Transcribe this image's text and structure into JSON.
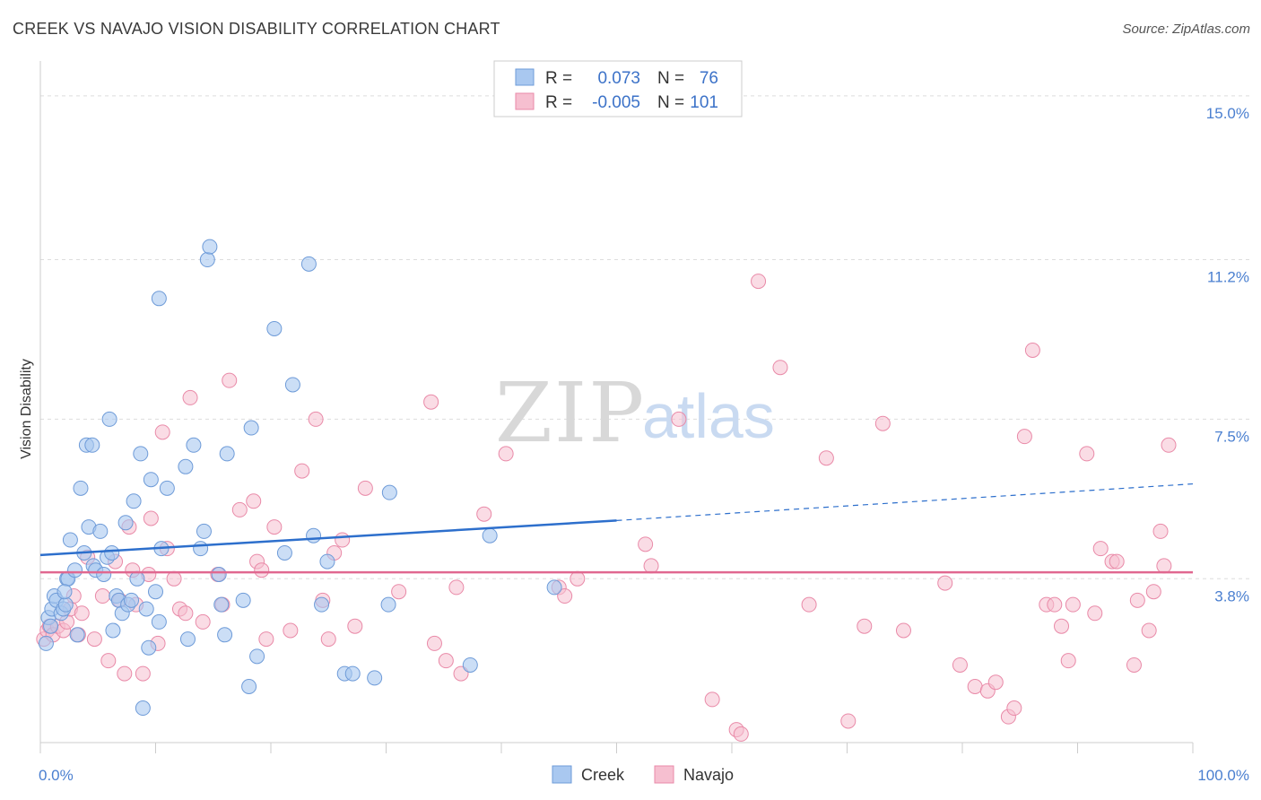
{
  "title": "CREEK VS NAVAJO VISION DISABILITY CORRELATION CHART",
  "source": "Source: ZipAtlas.com",
  "watermark": {
    "zip": "ZIP",
    "atlas": "atlas"
  },
  "colors": {
    "creek_fill": "#a9c8f0",
    "creek_stroke": "#6e9bd8",
    "creek_line": "#2d6fcc",
    "navajo_fill": "#f6bfd0",
    "navajo_stroke": "#e98aa8",
    "navajo_line": "#e06890",
    "tick_text": "#4a7fd0",
    "grid": "#dddddd"
  },
  "legend": {
    "rows": [
      {
        "r_label": "R =",
        "r_value": "0.073",
        "n_label": "N =",
        "n_value": "76"
      },
      {
        "r_label": "R =",
        "r_value": "-0.005",
        "n_label": "N =",
        "n_value": "101"
      }
    ]
  },
  "bottom_legend": [
    "Creek",
    "Navajo"
  ],
  "chart_data": {
    "type": "scatter",
    "title": "CREEK VS NAVAJO VISION DISABILITY CORRELATION CHART",
    "xlabel": "",
    "ylabel": "Vision Disability",
    "xlim": [
      0,
      100
    ],
    "ylim": [
      0,
      15.6
    ],
    "x_tick_labels": [
      "0.0%",
      "100.0%"
    ],
    "y_ticks": [
      3.8,
      7.5,
      11.2,
      15.0
    ],
    "y_tick_labels": [
      "3.8%",
      "7.5%",
      "11.2%",
      "15.0%"
    ],
    "grid": true,
    "legend_position": "top-center",
    "series": [
      {
        "name": "Creek",
        "r": 0.073,
        "n": 76,
        "trend": {
          "x0": 0,
          "y0": 4.35,
          "x1": 50,
          "y1": 5.15,
          "dashed_to_x": 100,
          "dashed_to_y": 6.0
        },
        "points": [
          [
            0.5,
            2.3
          ],
          [
            0.7,
            2.9
          ],
          [
            1.0,
            3.1
          ],
          [
            1.2,
            3.4
          ],
          [
            1.4,
            3.3
          ],
          [
            1.8,
            3.0
          ],
          [
            2.0,
            3.1
          ],
          [
            2.2,
            3.2
          ],
          [
            2.3,
            3.8
          ],
          [
            2.4,
            3.8
          ],
          [
            2.6,
            4.7
          ],
          [
            3.0,
            4.0
          ],
          [
            3.2,
            2.5
          ],
          [
            3.5,
            5.9
          ],
          [
            3.8,
            4.4
          ],
          [
            4.0,
            6.9
          ],
          [
            4.2,
            5.0
          ],
          [
            4.5,
            6.9
          ],
          [
            4.6,
            4.1
          ],
          [
            4.8,
            4.0
          ],
          [
            5.2,
            4.9
          ],
          [
            5.5,
            3.9
          ],
          [
            5.8,
            4.3
          ],
          [
            6.0,
            7.5
          ],
          [
            6.2,
            4.4
          ],
          [
            6.6,
            3.4
          ],
          [
            6.8,
            3.3
          ],
          [
            7.1,
            3.0
          ],
          [
            7.4,
            5.1
          ],
          [
            7.6,
            3.2
          ],
          [
            7.9,
            3.3
          ],
          [
            8.1,
            5.6
          ],
          [
            8.4,
            3.8
          ],
          [
            8.7,
            6.7
          ],
          [
            8.9,
            0.8
          ],
          [
            9.4,
            2.2
          ],
          [
            9.6,
            6.1
          ],
          [
            10.0,
            3.5
          ],
          [
            10.3,
            2.8
          ],
          [
            10.5,
            4.5
          ],
          [
            10.3,
            10.3
          ],
          [
            11.0,
            5.9
          ],
          [
            12.6,
            6.4
          ],
          [
            12.8,
            2.4
          ],
          [
            13.3,
            6.9
          ],
          [
            13.9,
            4.5
          ],
          [
            14.2,
            4.9
          ],
          [
            14.5,
            11.2
          ],
          [
            14.7,
            11.5
          ],
          [
            15.5,
            3.9
          ],
          [
            15.7,
            3.2
          ],
          [
            16.0,
            2.5
          ],
          [
            16.2,
            6.7
          ],
          [
            17.6,
            3.3
          ],
          [
            18.1,
            1.3
          ],
          [
            18.3,
            7.3
          ],
          [
            18.8,
            2.0
          ],
          [
            20.3,
            9.6
          ],
          [
            21.2,
            4.4
          ],
          [
            21.9,
            8.3
          ],
          [
            23.3,
            11.1
          ],
          [
            23.7,
            4.8
          ],
          [
            24.4,
            3.2
          ],
          [
            24.9,
            4.2
          ],
          [
            26.4,
            1.6
          ],
          [
            27.1,
            1.6
          ],
          [
            29.0,
            1.5
          ],
          [
            30.2,
            3.2
          ],
          [
            30.3,
            5.8
          ],
          [
            37.3,
            1.8
          ],
          [
            39.0,
            4.8
          ],
          [
            44.6,
            3.6
          ],
          [
            0.9,
            2.7
          ],
          [
            2.1,
            3.5
          ],
          [
            6.3,
            2.6
          ],
          [
            9.2,
            3.1
          ]
        ]
      },
      {
        "name": "Navajo",
        "r": -0.005,
        "n": 101,
        "trend": {
          "x0": 0,
          "y0": 3.95,
          "x1": 100,
          "y1": 3.95
        },
        "points": [
          [
            0.3,
            2.4
          ],
          [
            0.6,
            2.6
          ],
          [
            0.8,
            2.7
          ],
          [
            1.1,
            2.5
          ],
          [
            1.5,
            2.7
          ],
          [
            2.0,
            2.6
          ],
          [
            2.3,
            2.8
          ],
          [
            2.6,
            3.1
          ],
          [
            2.9,
            3.4
          ],
          [
            3.3,
            2.5
          ],
          [
            3.6,
            3.0
          ],
          [
            4.1,
            4.3
          ],
          [
            4.7,
            2.4
          ],
          [
            5.4,
            3.4
          ],
          [
            5.9,
            1.9
          ],
          [
            6.5,
            4.2
          ],
          [
            6.9,
            3.3
          ],
          [
            7.3,
            1.6
          ],
          [
            7.7,
            5.0
          ],
          [
            8.0,
            4.0
          ],
          [
            8.3,
            3.2
          ],
          [
            8.9,
            1.6
          ],
          [
            9.4,
            3.9
          ],
          [
            9.6,
            5.2
          ],
          [
            10.2,
            2.3
          ],
          [
            10.6,
            7.2
          ],
          [
            11.0,
            4.5
          ],
          [
            11.6,
            3.8
          ],
          [
            12.1,
            3.1
          ],
          [
            12.6,
            3.0
          ],
          [
            13.0,
            8.0
          ],
          [
            14.1,
            2.8
          ],
          [
            15.4,
            3.9
          ],
          [
            15.8,
            3.2
          ],
          [
            16.4,
            8.4
          ],
          [
            17.3,
            5.4
          ],
          [
            18.5,
            5.6
          ],
          [
            18.8,
            4.2
          ],
          [
            19.2,
            4.0
          ],
          [
            19.6,
            2.4
          ],
          [
            20.3,
            5.0
          ],
          [
            21.7,
            2.6
          ],
          [
            22.7,
            6.3
          ],
          [
            23.9,
            7.5
          ],
          [
            24.5,
            3.3
          ],
          [
            25.0,
            2.4
          ],
          [
            25.5,
            4.4
          ],
          [
            26.2,
            4.7
          ],
          [
            27.3,
            2.7
          ],
          [
            28.2,
            5.9
          ],
          [
            31.1,
            3.5
          ],
          [
            33.9,
            7.9
          ],
          [
            34.2,
            2.3
          ],
          [
            35.2,
            1.9
          ],
          [
            36.1,
            3.6
          ],
          [
            36.5,
            1.6
          ],
          [
            38.5,
            5.3
          ],
          [
            40.4,
            6.7
          ],
          [
            45.0,
            3.6
          ],
          [
            45.5,
            3.4
          ],
          [
            46.6,
            3.8
          ],
          [
            52.5,
            4.6
          ],
          [
            53.0,
            4.1
          ],
          [
            55.4,
            7.5
          ],
          [
            58.3,
            1.0
          ],
          [
            60.4,
            0.3
          ],
          [
            60.8,
            0.2
          ],
          [
            62.3,
            10.7
          ],
          [
            64.2,
            8.7
          ],
          [
            66.7,
            3.2
          ],
          [
            68.2,
            6.6
          ],
          [
            70.1,
            0.5
          ],
          [
            71.5,
            2.7
          ],
          [
            73.1,
            7.4
          ],
          [
            74.9,
            2.6
          ],
          [
            78.5,
            3.7
          ],
          [
            79.8,
            1.8
          ],
          [
            81.1,
            1.3
          ],
          [
            82.2,
            1.2
          ],
          [
            82.9,
            1.4
          ],
          [
            84.0,
            0.6
          ],
          [
            84.5,
            0.8
          ],
          [
            85.4,
            7.1
          ],
          [
            86.1,
            9.1
          ],
          [
            87.3,
            3.2
          ],
          [
            88.0,
            3.2
          ],
          [
            88.6,
            2.7
          ],
          [
            89.2,
            1.9
          ],
          [
            89.6,
            3.2
          ],
          [
            90.8,
            6.7
          ],
          [
            91.5,
            3.0
          ],
          [
            92.0,
            4.5
          ],
          [
            93.0,
            4.2
          ],
          [
            93.4,
            4.2
          ],
          [
            94.9,
            1.8
          ],
          [
            95.2,
            3.3
          ],
          [
            96.2,
            2.6
          ],
          [
            96.6,
            3.5
          ],
          [
            97.2,
            4.9
          ],
          [
            97.5,
            4.1
          ],
          [
            97.9,
            6.9
          ]
        ]
      }
    ]
  }
}
